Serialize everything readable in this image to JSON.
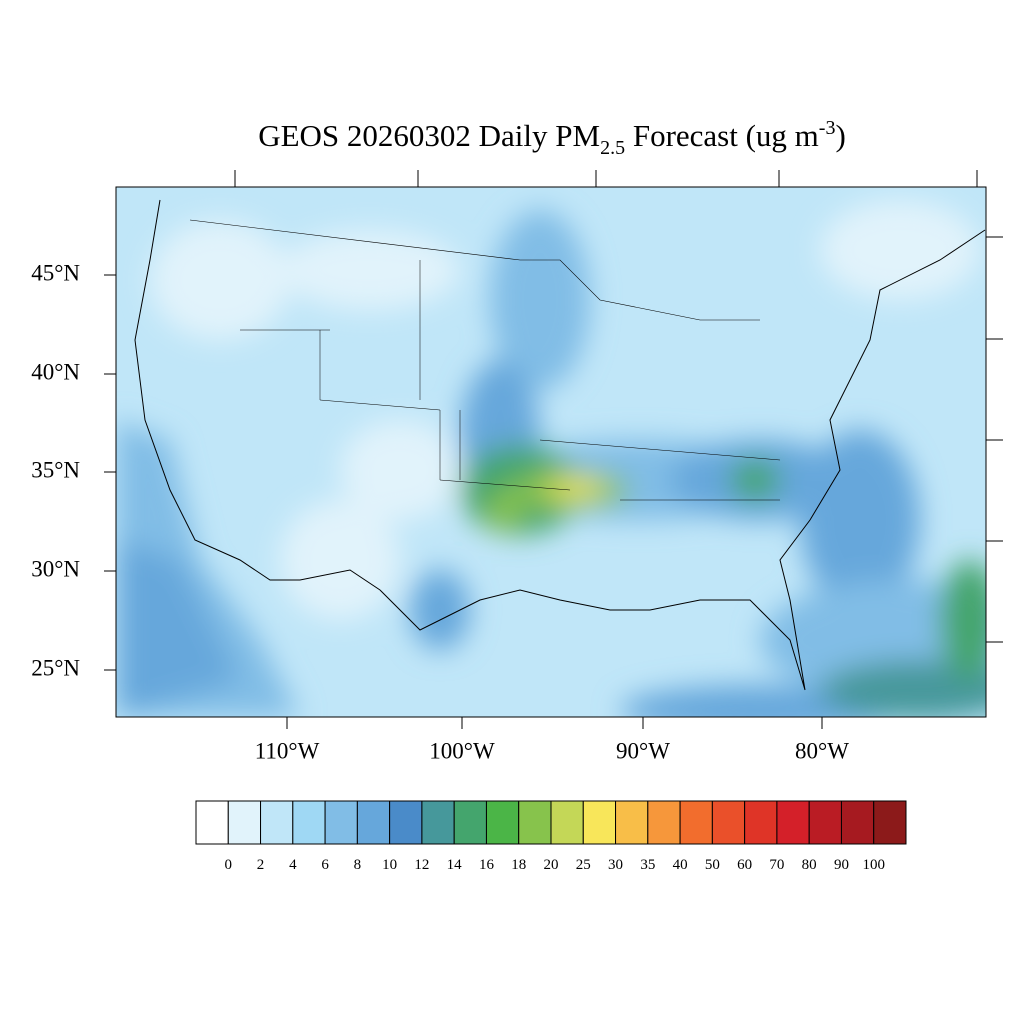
{
  "title": {
    "main": "GEOS 20260302 Daily PM",
    "subscript": "2.5",
    "middle": " Forecast (ug m",
    "superscript": "-3",
    "end": ")"
  },
  "latitude_labels": [
    "45°N",
    "40°N",
    "35°N",
    "30°N",
    "25°N"
  ],
  "longitude_labels": [
    "110°W",
    "100°W",
    "90°W",
    "80°W"
  ],
  "colorbar": {
    "labels": [
      0,
      2,
      4,
      6,
      8,
      10,
      12,
      14,
      16,
      18,
      20,
      25,
      30,
      35,
      40,
      50,
      60,
      70,
      80,
      90,
      100
    ],
    "colors": [
      "#ffffff",
      "#e1f3fb",
      "#c0e6f8",
      "#9fd8f4",
      "#81bde6",
      "#66a7db",
      "#4a8bc9",
      "#46989b",
      "#44a56d",
      "#4bb547",
      "#87c34c",
      "#c4d757",
      "#f8e65a",
      "#f8be48",
      "#f6973b",
      "#f26d2d",
      "#ea502a",
      "#df3427",
      "#d42029",
      "#ba1c24",
      "#a61a20",
      "#8c1a1a"
    ]
  }
}
